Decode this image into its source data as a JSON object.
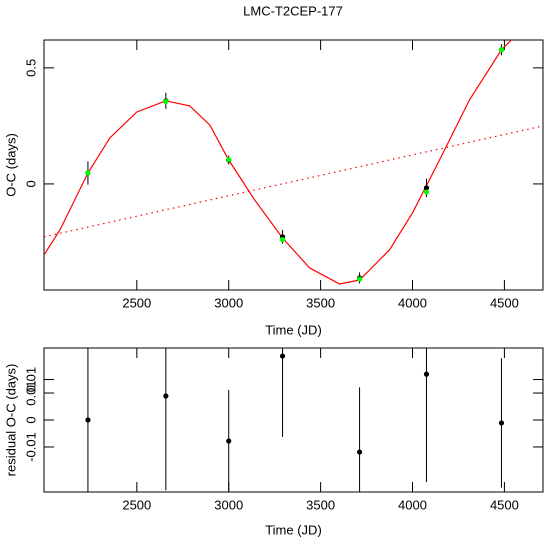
{
  "chart_data": [
    {
      "type": "scatter",
      "title": "LMC-T2CEP-177",
      "x_label": "Time (JD)",
      "y_label": "O-C (days)",
      "xlim": [
        1995,
        4710
      ],
      "xticks": [
        2500,
        3000,
        3500,
        4000,
        4500
      ],
      "ylim": [
        -0.457,
        0.62
      ],
      "yticks": [
        0,
        0.5
      ],
      "series": [
        {
          "type": "line",
          "color": "#ff0000",
          "dash": false,
          "x": [
            1995,
            2082,
            2234,
            2353,
            2500,
            2658,
            2788,
            2897,
            3000,
            3141,
            3293,
            3440,
            3603,
            3712,
            3875,
            4000,
            4147,
            4310,
            4484,
            4538
          ],
          "values": [
            -0.306,
            -0.198,
            0.047,
            0.198,
            0.31,
            0.358,
            0.336,
            0.254,
            0.103,
            -0.069,
            -0.233,
            -0.362,
            -0.431,
            -0.414,
            -0.284,
            -0.125,
            0.103,
            0.362,
            0.578,
            0.62
          ]
        },
        {
          "type": "line",
          "color": "#ff0000",
          "dash": true,
          "x": [
            1995,
            4710
          ],
          "values": [
            -0.228,
            0.25
          ]
        },
        {
          "type": "errorbar",
          "color": "#000000",
          "x": [
            2234,
            2658,
            3000,
            3293,
            3712,
            4076,
            4484
          ],
          "values": [
            0.047,
            0.358,
            0.103,
            -0.228,
            -0.405,
            -0.017,
            0.578
          ],
          "errors": [
            0.05,
            0.035,
            0.019,
            0.03,
            0.024,
            0.04,
            0.024
          ]
        },
        {
          "type": "scatter",
          "color": "#00ff00",
          "x": [
            2234,
            2658,
            3000,
            3293,
            3712,
            4076,
            4484
          ],
          "values": [
            0.047,
            0.355,
            0.105,
            -0.24,
            -0.41,
            -0.035,
            0.578
          ]
        }
      ]
    },
    {
      "type": "scatter",
      "x_label": "Time (JD)",
      "y_label": "residual O-C (days)",
      "xlim": [
        1995,
        4710
      ],
      "xticks": [
        2500,
        3000,
        3500,
        4000,
        4500
      ],
      "ylim": [
        -0.0267,
        0.0267
      ],
      "yticks": [
        -0.01,
        0,
        0.01,
        {
          "value": 0.015,
          "label": "0.01"
        }
      ],
      "series": [
        {
          "type": "errorbar",
          "color": "#000000",
          "x": [
            2234,
            2658,
            3000,
            3293,
            3712,
            4076,
            4484
          ],
          "values": [
            0,
            0.0089,
            -0.0078,
            0.0237,
            -0.0119,
            0.017,
            -0.0011
          ],
          "errors": [
            0.05,
            0.035,
            0.019,
            0.03,
            0.024,
            0.04,
            0.024
          ]
        }
      ]
    }
  ]
}
